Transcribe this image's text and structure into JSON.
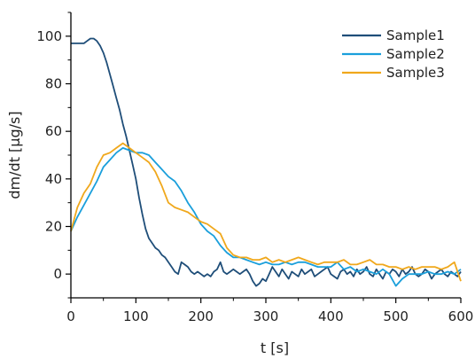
{
  "chart_data": {
    "type": "line",
    "xlabel": "t [s]",
    "ylabel": "dm/dt [µg/s]",
    "xlim": [
      0,
      600
    ],
    "ylim": [
      -10,
      110
    ],
    "xticks": [
      0,
      100,
      200,
      300,
      400,
      500,
      600
    ],
    "yticks": [
      0,
      20,
      40,
      60,
      80,
      100
    ],
    "grid": false,
    "legend_position": "top-right",
    "series": [
      {
        "name": "Sample1",
        "color": "#1f4e79",
        "x": [
          0,
          10,
          15,
          20,
          25,
          30,
          35,
          40,
          45,
          50,
          55,
          60,
          65,
          70,
          75,
          80,
          85,
          90,
          95,
          100,
          105,
          110,
          115,
          120,
          125,
          130,
          135,
          140,
          145,
          150,
          155,
          160,
          165,
          170,
          175,
          180,
          185,
          190,
          195,
          200,
          205,
          210,
          215,
          220,
          225,
          230,
          235,
          240,
          245,
          250,
          255,
          260,
          265,
          270,
          275,
          280,
          285,
          290,
          295,
          300,
          305,
          310,
          315,
          320,
          325,
          330,
          335,
          340,
          345,
          350,
          355,
          360,
          365,
          370,
          375,
          380,
          385,
          390,
          395,
          400,
          405,
          410,
          415,
          420,
          425,
          430,
          435,
          440,
          445,
          450,
          455,
          460,
          465,
          470,
          475,
          480,
          485,
          490,
          495,
          500,
          505,
          510,
          515,
          520,
          525,
          530,
          535,
          540,
          545,
          550,
          555,
          560,
          565,
          570,
          575,
          580,
          585,
          590,
          595,
          600
        ],
        "y": [
          97,
          97,
          97,
          97,
          98,
          99,
          99,
          98,
          96,
          93,
          89,
          84,
          79,
          74,
          69,
          63,
          58,
          52,
          46,
          40,
          32,
          25,
          19,
          15,
          13,
          11,
          10,
          8,
          7,
          5,
          3,
          1,
          0,
          5,
          4,
          3,
          1,
          0,
          1,
          0,
          -1,
          0,
          -1,
          1,
          2,
          5,
          1,
          0,
          1,
          2,
          1,
          0,
          1,
          2,
          0,
          -3,
          -5,
          -4,
          -2,
          -3,
          0,
          3,
          1,
          -1,
          2,
          0,
          -2,
          1,
          0,
          -1,
          2,
          0,
          1,
          2,
          -1,
          0,
          1,
          2,
          3,
          0,
          -1,
          -2,
          1,
          2,
          0,
          1,
          -1,
          2,
          0,
          1,
          3,
          0,
          -1,
          2,
          0,
          -2,
          1,
          0,
          2,
          1,
          -1,
          2,
          0,
          1,
          3,
          0,
          -1,
          0,
          2,
          1,
          -2,
          0,
          1,
          2,
          0,
          -1,
          1,
          0,
          -1,
          1
        ]
      },
      {
        "name": "Sample2",
        "color": "#1a9fdb",
        "x": [
          0,
          10,
          20,
          30,
          40,
          50,
          60,
          70,
          80,
          90,
          100,
          110,
          120,
          130,
          140,
          150,
          160,
          170,
          180,
          190,
          200,
          210,
          220,
          230,
          240,
          250,
          260,
          270,
          280,
          290,
          300,
          310,
          320,
          330,
          340,
          350,
          360,
          370,
          380,
          390,
          400,
          410,
          420,
          430,
          440,
          450,
          460,
          470,
          480,
          490,
          500,
          510,
          520,
          530,
          540,
          550,
          560,
          570,
          580,
          590,
          600
        ],
        "y": [
          18,
          24,
          29,
          34,
          39,
          45,
          48,
          51,
          53,
          52,
          51,
          51,
          50,
          47,
          44,
          41,
          39,
          35,
          30,
          26,
          21,
          18,
          16,
          12,
          9,
          7,
          7,
          6,
          5,
          4,
          5,
          4,
          4,
          5,
          4,
          5,
          5,
          4,
          3,
          3,
          3,
          5,
          2,
          3,
          1,
          2,
          1,
          0,
          2,
          0,
          -5,
          -2,
          0,
          0,
          0,
          1,
          0,
          0,
          1,
          0,
          2
        ]
      },
      {
        "name": "Sample3",
        "color": "#f0a81c",
        "x": [
          0,
          10,
          20,
          30,
          40,
          50,
          60,
          70,
          80,
          90,
          100,
          110,
          120,
          130,
          140,
          150,
          160,
          170,
          180,
          190,
          200,
          210,
          220,
          230,
          240,
          250,
          260,
          270,
          280,
          290,
          300,
          310,
          320,
          330,
          340,
          350,
          360,
          370,
          380,
          390,
          400,
          410,
          420,
          430,
          440,
          450,
          460,
          470,
          480,
          490,
          500,
          510,
          520,
          530,
          540,
          550,
          560,
          570,
          580,
          590,
          600
        ],
        "y": [
          18,
          28,
          34,
          38,
          45,
          50,
          51,
          53,
          55,
          53,
          51,
          49,
          47,
          43,
          37,
          30,
          28,
          27,
          26,
          24,
          22,
          21,
          19,
          17,
          11,
          8,
          7,
          7,
          6,
          6,
          7,
          5,
          6,
          5,
          6,
          7,
          6,
          5,
          4,
          5,
          5,
          5,
          6,
          4,
          4,
          5,
          6,
          4,
          4,
          3,
          3,
          2,
          3,
          2,
          3,
          3,
          3,
          2,
          3,
          5,
          -3
        ]
      }
    ]
  }
}
